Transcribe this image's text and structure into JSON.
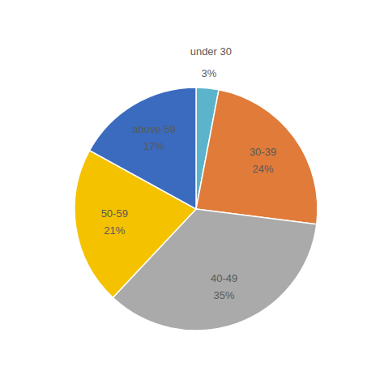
{
  "chart_data": {
    "type": "pie",
    "categories": [
      "under 30",
      "30-39",
      "40-49",
      "50-59",
      "above 59"
    ],
    "values": [
      3,
      24,
      35,
      21,
      17
    ],
    "value_labels": [
      "3%",
      "24%",
      "35%",
      "21%",
      "17%"
    ],
    "colors": [
      "#5bb3cc",
      "#e07b3a",
      "#aaaaaa",
      "#f5c200",
      "#3a6bbf"
    ],
    "data_labels": true
  }
}
